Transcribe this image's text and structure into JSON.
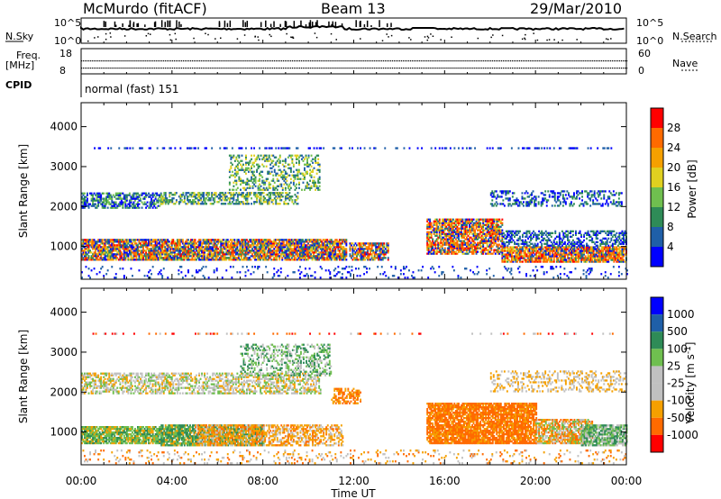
{
  "header": {
    "station": "McMurdo (fitACF)",
    "beam": "Beam 13",
    "date": "29/Mar/2010"
  },
  "strip_panels": {
    "nsky_label": "N.Sky",
    "nsky_ticks": [
      "10^5",
      "10^0"
    ],
    "nsearch_label": "N.Search",
    "nsearch_ticks": [
      "10^5",
      "10^0"
    ],
    "freq_label": "Freq.",
    "freq_unit": "[MHz]",
    "freq_ticks": [
      "18",
      "8"
    ],
    "nave_label": "Nave",
    "nave_ticks": [
      "60",
      "0"
    ],
    "cpid_label": "CPID",
    "cpid_value": "normal (fast) 151"
  },
  "colors": {
    "power_scale": [
      "#0000ff",
      "#1f5fa8",
      "#2e8b57",
      "#6fbf4f",
      "#e0d020",
      "#f5a000",
      "#ff6a00",
      "#ff0000"
    ],
    "velocity_scale": [
      "#ff0000",
      "#ff6a00",
      "#f5a000",
      "#c0c0c0",
      "#c0c0c0",
      "#6fbf4f",
      "#2e8b57",
      "#1f5fa8",
      "#0000ff"
    ]
  },
  "chart_data": [
    {
      "type": "heatmap",
      "name": "power",
      "ylabel": "Slant Range [km]",
      "ylim": [
        180,
        4600
      ],
      "yticks": [
        "1000",
        "2000",
        "3000",
        "4000"
      ],
      "xlim_hours": [
        0,
        24
      ],
      "colorbar_label": "Power [dB]",
      "colorbar_ticks": [
        "4",
        "8",
        "12",
        "16",
        "20",
        "24",
        "28"
      ],
      "colorbar_range": [
        0,
        32
      ]
    },
    {
      "type": "heatmap",
      "name": "velocity",
      "ylabel": "Slant Range [km]",
      "ylim": [
        180,
        4600
      ],
      "yticks": [
        "1000",
        "2000",
        "3000",
        "4000"
      ],
      "xlim_hours": [
        0,
        24
      ],
      "colorbar_label": "Velocity [m s",
      "colorbar_label_sup": "-1",
      "colorbar_label_end": "]",
      "colorbar_ticks": [
        "1000",
        "500",
        "100",
        "25",
        "-25",
        "-100",
        "-500",
        "-1000"
      ]
    }
  ],
  "xaxis": {
    "label": "Time UT",
    "ticks": [
      "00:00",
      "04:00",
      "08:00",
      "12:00",
      "16:00",
      "20:00",
      "00:00"
    ]
  }
}
